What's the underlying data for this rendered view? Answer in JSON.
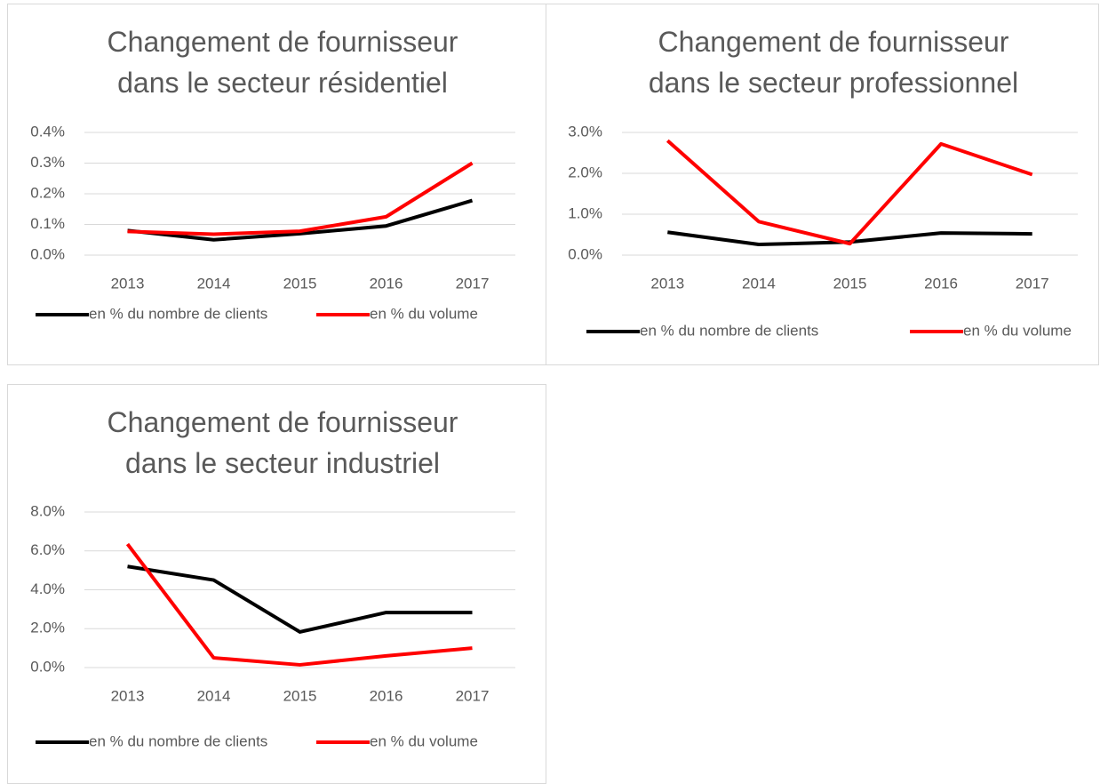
{
  "chart_data": [
    {
      "type": "line",
      "title": "Changement de fournisseur dans le secteur résidentiel",
      "categories": [
        "2013",
        "2014",
        "2015",
        "2016",
        "2017"
      ],
      "series": [
        {
          "name": "en % du nombre de clients",
          "color": "#000000",
          "values": [
            0.08,
            0.05,
            0.07,
            0.095,
            0.178
          ]
        },
        {
          "name": "en % du volume",
          "color": "#ff0000",
          "values": [
            0.077,
            0.068,
            0.078,
            0.125,
            0.3
          ]
        }
      ],
      "ylim": [
        0,
        0.4
      ],
      "yticks": [
        {
          "value": 0,
          "label": "0.0%"
        },
        {
          "value": 0.1,
          "label": "0.1%"
        },
        {
          "value": 0.2,
          "label": "0.2%"
        },
        {
          "value": 0.3,
          "label": "0.3%"
        },
        {
          "value": 0.4,
          "label": "0.4%"
        }
      ],
      "grid": true,
      "legend": "bottom"
    },
    {
      "type": "line",
      "title": "Changement de fournisseur dans le secteur professionnel",
      "categories": [
        "2013",
        "2014",
        "2015",
        "2016",
        "2017"
      ],
      "series": [
        {
          "name": "en % du nombre de clients",
          "color": "#000000",
          "values": [
            0.56,
            0.26,
            0.32,
            0.54,
            0.52
          ]
        },
        {
          "name": "en % du volume",
          "color": "#ff0000",
          "values": [
            2.8,
            0.82,
            0.28,
            2.72,
            1.97
          ]
        }
      ],
      "ylim": [
        0,
        3
      ],
      "yticks": [
        {
          "value": 0,
          "label": "0.0%"
        },
        {
          "value": 1,
          "label": "1.0%"
        },
        {
          "value": 2,
          "label": "2.0%"
        },
        {
          "value": 3,
          "label": "3.0%"
        }
      ],
      "grid": true,
      "legend": "bottom"
    },
    {
      "type": "line",
      "title": "Changement de fournisseur dans le secteur industriel",
      "categories": [
        "2013",
        "2014",
        "2015",
        "2016",
        "2017"
      ],
      "series": [
        {
          "name": "en % du nombre de clients",
          "color": "#000000",
          "values": [
            5.2,
            4.5,
            1.83,
            2.83,
            2.83
          ]
        },
        {
          "name": "en % du volume",
          "color": "#ff0000",
          "values": [
            6.35,
            0.5,
            0.14,
            0.6,
            1.0
          ]
        }
      ],
      "ylim": [
        0,
        8
      ],
      "yticks": [
        {
          "value": 0,
          "label": "0.0%"
        },
        {
          "value": 2,
          "label": "2.0%"
        },
        {
          "value": 4,
          "label": "4.0%"
        },
        {
          "value": 6,
          "label": "6.0%"
        },
        {
          "value": 8,
          "label": "8.0%"
        }
      ],
      "grid": true,
      "legend": "bottom"
    }
  ]
}
